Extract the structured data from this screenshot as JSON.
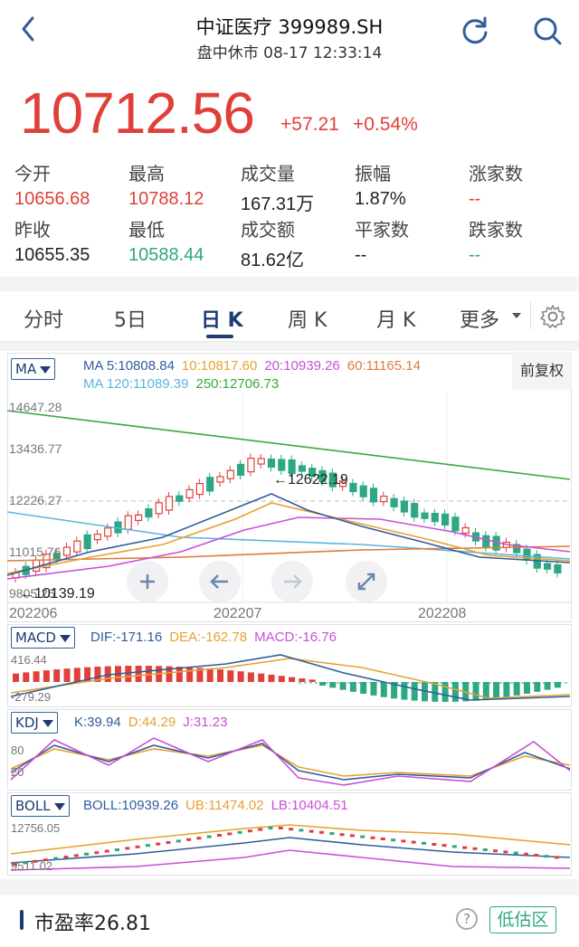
{
  "header": {
    "title": "中证医疗 399989.SH",
    "subtitle": "盘中休市 08-17 12:33:14"
  },
  "quote": {
    "price": "10712.56",
    "change": "+57.21",
    "change_pct": "+0.54%",
    "stats": [
      {
        "label": "今开",
        "value": "10656.68",
        "color": "red"
      },
      {
        "label": "最高",
        "value": "10788.12",
        "color": "red"
      },
      {
        "label": "成交量",
        "value": "167.31万",
        "color": "dark"
      },
      {
        "label": "振幅",
        "value": "1.87%",
        "color": "dark"
      },
      {
        "label": "涨家数",
        "value": "--",
        "color": "red"
      },
      {
        "label": "昨收",
        "value": "10655.35",
        "color": "dark"
      },
      {
        "label": "最低",
        "value": "10588.44",
        "color": "green"
      },
      {
        "label": "成交额",
        "value": "81.62亿",
        "color": "dark"
      },
      {
        "label": "平家数",
        "value": "--",
        "color": "dark"
      },
      {
        "label": "跌家数",
        "value": "--",
        "color": "green"
      }
    ]
  },
  "tabs": [
    {
      "label": "分时",
      "active": false
    },
    {
      "label": "5日",
      "active": false
    },
    {
      "label": "日 K",
      "active": true
    },
    {
      "label": "周 K",
      "active": false
    },
    {
      "label": "月 K",
      "active": false
    },
    {
      "label": "更多",
      "active": false
    }
  ],
  "kline": {
    "indicator": "MA",
    "legend_line1": [
      {
        "text": "MA 5:10808.84",
        "color": "#2f5e9c"
      },
      {
        "text": "10:10817.60",
        "color": "#e8a030"
      },
      {
        "text": "20:10939.26",
        "color": "#c94fd6"
      },
      {
        "text": "60:11165.14",
        "color": "#e07a3a"
      }
    ],
    "legend_line2": [
      {
        "text": "MA 120:11089.39",
        "color": "#5bb6e0"
      },
      {
        "text": "250:12706.73",
        "color": "#3aa83a"
      }
    ],
    "adjust_label": "前复权",
    "y_labels": [
      "14647.28",
      "13436.77",
      "12226.27",
      "11015.76",
      "9805.26"
    ],
    "high_marker": "←12622.19",
    "low_marker": "←10139.19",
    "x_labels": [
      "202206",
      "202207",
      "202208"
    ]
  },
  "macd": {
    "indicator": "MACD",
    "legend": [
      {
        "text": "DIF:-171.16",
        "color": "#2f5e9c"
      },
      {
        "text": "DEA:-162.78",
        "color": "#e8a030"
      },
      {
        "text": "MACD:-16.76",
        "color": "#c94fd6"
      }
    ],
    "y_top": "416.44",
    "y_bottom": "-279.29"
  },
  "kdj": {
    "indicator": "KDJ",
    "legend": [
      {
        "text": "K:39.94",
        "color": "#2f5e9c"
      },
      {
        "text": "D:44.29",
        "color": "#e8a030"
      },
      {
        "text": "J:31.23",
        "color": "#c94fd6"
      }
    ],
    "y_top": "80",
    "y_bottom": "20"
  },
  "boll": {
    "indicator": "BOLL",
    "legend": [
      {
        "text": "BOLL:10939.26",
        "color": "#2f5e9c"
      },
      {
        "text": "UB:11474.02",
        "color": "#e8a030"
      },
      {
        "text": "LB:10404.51",
        "color": "#c94fd6"
      }
    ],
    "y_top": "12756.05",
    "y_bottom": "9511.02"
  },
  "bottom": {
    "pe_label": "市盈率26.81",
    "help": "?",
    "zone": "低估区"
  },
  "colors": {
    "up": "#e0403a",
    "down": "#2ea884",
    "accent": "#1f3b73"
  }
}
